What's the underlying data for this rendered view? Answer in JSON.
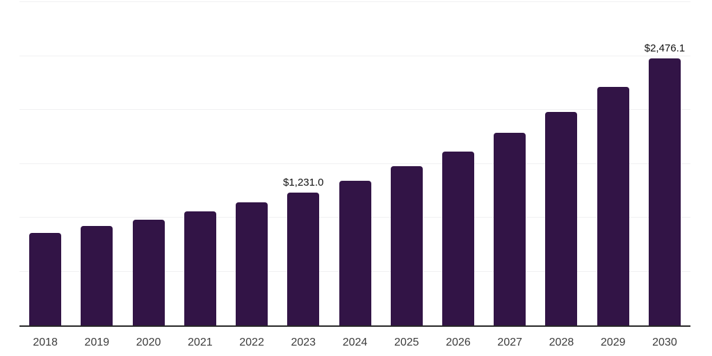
{
  "chart_data": {
    "type": "bar",
    "title": "",
    "categories": [
      "2018",
      "2019",
      "2020",
      "2021",
      "2022",
      "2023",
      "2024",
      "2025",
      "2026",
      "2027",
      "2028",
      "2029",
      "2030"
    ],
    "values": [
      860,
      925,
      983,
      1060,
      1143,
      1231.0,
      1341,
      1475,
      1615,
      1788,
      1980,
      2216,
      2476.1
    ],
    "data_labels": [
      {
        "category": "2023",
        "label": "$1,231.0"
      },
      {
        "category": "2030",
        "label": "$2,476.1"
      }
    ],
    "xlabel": "",
    "ylabel": "",
    "ylim": [
      0,
      3000
    ],
    "gridline_values": [
      500,
      1000,
      1500,
      2000,
      2500,
      3000
    ],
    "grid": "horizontal",
    "y_tick_labels_visible": false,
    "legend": "none",
    "colors": {
      "bar": "#321446",
      "axis_line": "#262626",
      "gridline": "#f1f1f2",
      "bar_label": "#111111",
      "x_tick_label": "#3b3b3b",
      "background": "#ffffff"
    }
  }
}
